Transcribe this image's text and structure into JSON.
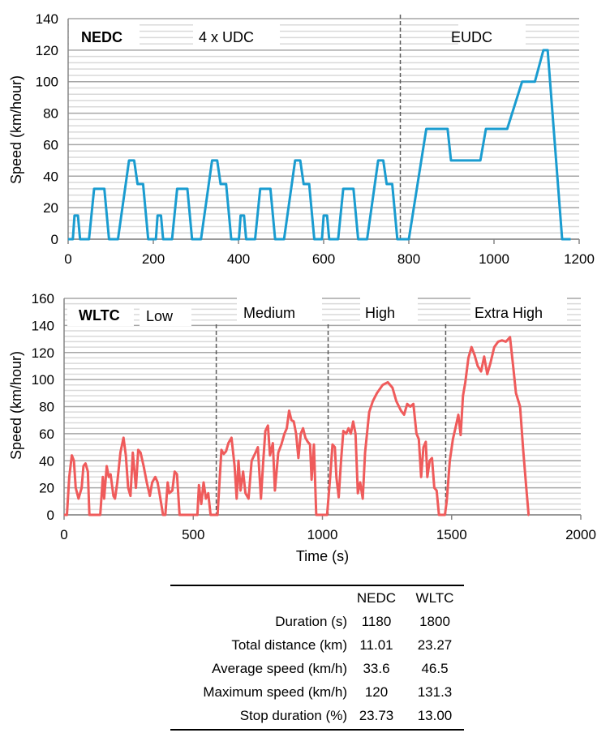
{
  "chart_data": [
    {
      "type": "line",
      "title": "",
      "xlabel": "",
      "ylabel": "Speed (km/hour)",
      "xlim": [
        0,
        1200
      ],
      "ylim": [
        0,
        140
      ],
      "xticks": [
        0,
        200,
        400,
        600,
        800,
        1000,
        1200
      ],
      "yticks": [
        0,
        20,
        40,
        60,
        80,
        100,
        120,
        140
      ],
      "grid": true,
      "color": "#1a9cd0",
      "annotations": {
        "cycle": "NEDC",
        "phases": [
          "4 x UDC",
          "EUDC"
        ]
      },
      "phase_boundaries": [
        780
      ],
      "points": [
        [
          0,
          0
        ],
        [
          11,
          0
        ],
        [
          15,
          15
        ],
        [
          23,
          15
        ],
        [
          28,
          0
        ],
        [
          49,
          0
        ],
        [
          61,
          32
        ],
        [
          85,
          32
        ],
        [
          96,
          0
        ],
        [
          117,
          0
        ],
        [
          143,
          50
        ],
        [
          155,
          50
        ],
        [
          163,
          35
        ],
        [
          176,
          35
        ],
        [
          188,
          0
        ],
        [
          206,
          0
        ],
        [
          210,
          15
        ],
        [
          218,
          15
        ],
        [
          223,
          0
        ],
        [
          244,
          0
        ],
        [
          256,
          32
        ],
        [
          280,
          32
        ],
        [
          291,
          0
        ],
        [
          312,
          0
        ],
        [
          338,
          50
        ],
        [
          350,
          50
        ],
        [
          358,
          35
        ],
        [
          371,
          35
        ],
        [
          383,
          0
        ],
        [
          401,
          0
        ],
        [
          405,
          15
        ],
        [
          413,
          15
        ],
        [
          418,
          0
        ],
        [
          439,
          0
        ],
        [
          451,
          32
        ],
        [
          475,
          32
        ],
        [
          486,
          0
        ],
        [
          507,
          0
        ],
        [
          533,
          50
        ],
        [
          545,
          50
        ],
        [
          553,
          35
        ],
        [
          566,
          35
        ],
        [
          578,
          0
        ],
        [
          596,
          0
        ],
        [
          600,
          15
        ],
        [
          608,
          15
        ],
        [
          613,
          0
        ],
        [
          634,
          0
        ],
        [
          646,
          32
        ],
        [
          670,
          32
        ],
        [
          681,
          0
        ],
        [
          702,
          0
        ],
        [
          728,
          50
        ],
        [
          740,
          50
        ],
        [
          748,
          35
        ],
        [
          761,
          35
        ],
        [
          773,
          0
        ],
        [
          800,
          0
        ],
        [
          841,
          70
        ],
        [
          891,
          70
        ],
        [
          899,
          50
        ],
        [
          968,
          50
        ],
        [
          981,
          70
        ],
        [
          1031,
          70
        ],
        [
          1066,
          100
        ],
        [
          1096,
          100
        ],
        [
          1116,
          120
        ],
        [
          1126,
          120
        ],
        [
          1160,
          0
        ],
        [
          1180,
          0
        ]
      ]
    },
    {
      "type": "line",
      "title": "",
      "xlabel": "Time (s)",
      "ylabel": "Speed (km/hour)",
      "xlim": [
        0,
        2000
      ],
      "ylim": [
        0,
        160
      ],
      "xticks": [
        0,
        500,
        1000,
        1500,
        2000
      ],
      "yticks": [
        0,
        20,
        40,
        60,
        80,
        100,
        120,
        140,
        160
      ],
      "grid": true,
      "color": "#ef5b5b",
      "annotations": {
        "cycle": "WLTC",
        "phases": [
          "Low",
          "Medium",
          "High",
          "Extra High"
        ]
      },
      "phase_boundaries": [
        589,
        1022,
        1477
      ],
      "points": [
        [
          0,
          0
        ],
        [
          11,
          0
        ],
        [
          20,
          28
        ],
        [
          30,
          44
        ],
        [
          38,
          40
        ],
        [
          45,
          20
        ],
        [
          56,
          12
        ],
        [
          68,
          20
        ],
        [
          75,
          36
        ],
        [
          83,
          38
        ],
        [
          92,
          32
        ],
        [
          98,
          0
        ],
        [
          140,
          0
        ],
        [
          150,
          28
        ],
        [
          155,
          12
        ],
        [
          165,
          36
        ],
        [
          173,
          28
        ],
        [
          180,
          30
        ],
        [
          191,
          14
        ],
        [
          197,
          12
        ],
        [
          206,
          24
        ],
        [
          218,
          46
        ],
        [
          230,
          57
        ],
        [
          239,
          44
        ],
        [
          248,
          20
        ],
        [
          257,
          14
        ],
        [
          266,
          46
        ],
        [
          278,
          20
        ],
        [
          287,
          48
        ],
        [
          296,
          46
        ],
        [
          308,
          36
        ],
        [
          320,
          24
        ],
        [
          332,
          14
        ],
        [
          341,
          24
        ],
        [
          353,
          28
        ],
        [
          362,
          24
        ],
        [
          371,
          14
        ],
        [
          383,
          0
        ],
        [
          392,
          0
        ],
        [
          401,
          24
        ],
        [
          407,
          16
        ],
        [
          419,
          18
        ],
        [
          428,
          32
        ],
        [
          437,
          30
        ],
        [
          447,
          0
        ],
        [
          516,
          0
        ],
        [
          522,
          22
        ],
        [
          531,
          8
        ],
        [
          540,
          24
        ],
        [
          549,
          12
        ],
        [
          558,
          16
        ],
        [
          567,
          0
        ],
        [
          594,
          0
        ],
        [
          609,
          48
        ],
        [
          618,
          45
        ],
        [
          627,
          47
        ],
        [
          636,
          53
        ],
        [
          648,
          57
        ],
        [
          660,
          36
        ],
        [
          668,
          12
        ],
        [
          675,
          40
        ],
        [
          683,
          18
        ],
        [
          693,
          32
        ],
        [
          702,
          16
        ],
        [
          714,
          12
        ],
        [
          726,
          40
        ],
        [
          741,
          46
        ],
        [
          750,
          50
        ],
        [
          762,
          12
        ],
        [
          771,
          40
        ],
        [
          779,
          62
        ],
        [
          789,
          66
        ],
        [
          797,
          44
        ],
        [
          808,
          53
        ],
        [
          816,
          18
        ],
        [
          829,
          46
        ],
        [
          841,
          52
        ],
        [
          853,
          60
        ],
        [
          862,
          64
        ],
        [
          871,
          77
        ],
        [
          880,
          70
        ],
        [
          889,
          69
        ],
        [
          898,
          60
        ],
        [
          907,
          42
        ],
        [
          916,
          60
        ],
        [
          925,
          64
        ],
        [
          934,
          57
        ],
        [
          943,
          54
        ],
        [
          952,
          52
        ],
        [
          958,
          26
        ],
        [
          967,
          52
        ],
        [
          976,
          0
        ],
        [
          1018,
          0
        ],
        [
          1030,
          28
        ],
        [
          1039,
          52
        ],
        [
          1048,
          50
        ],
        [
          1054,
          28
        ],
        [
          1063,
          13
        ],
        [
          1072,
          40
        ],
        [
          1081,
          62
        ],
        [
          1092,
          60
        ],
        [
          1101,
          64
        ],
        [
          1110,
          60
        ],
        [
          1119,
          69
        ],
        [
          1128,
          60
        ],
        [
          1137,
          16
        ],
        [
          1146,
          24
        ],
        [
          1156,
          12
        ],
        [
          1165,
          46
        ],
        [
          1181,
          76
        ],
        [
          1195,
          84
        ],
        [
          1211,
          90
        ],
        [
          1233,
          96
        ],
        [
          1253,
          98
        ],
        [
          1271,
          94
        ],
        [
          1286,
          84
        ],
        [
          1304,
          77
        ],
        [
          1316,
          74
        ],
        [
          1328,
          82
        ],
        [
          1340,
          80
        ],
        [
          1352,
          82
        ],
        [
          1364,
          60
        ],
        [
          1373,
          56
        ],
        [
          1382,
          28
        ],
        [
          1391,
          50
        ],
        [
          1400,
          54
        ],
        [
          1406,
          28
        ],
        [
          1415,
          40
        ],
        [
          1424,
          42
        ],
        [
          1433,
          20
        ],
        [
          1442,
          18
        ],
        [
          1451,
          0
        ],
        [
          1474,
          0
        ],
        [
          1481,
          10
        ],
        [
          1493,
          40
        ],
        [
          1505,
          56
        ],
        [
          1517,
          66
        ],
        [
          1526,
          74
        ],
        [
          1535,
          59
        ],
        [
          1544,
          88
        ],
        [
          1553,
          98
        ],
        [
          1565,
          116
        ],
        [
          1577,
          124
        ],
        [
          1589,
          118
        ],
        [
          1601,
          110
        ],
        [
          1614,
          106
        ],
        [
          1626,
          117
        ],
        [
          1638,
          104
        ],
        [
          1650,
          112
        ],
        [
          1665,
          124
        ],
        [
          1680,
          128
        ],
        [
          1695,
          129
        ],
        [
          1710,
          128
        ],
        [
          1726,
          131.3
        ],
        [
          1737,
          112
        ],
        [
          1749,
          90
        ],
        [
          1765,
          80
        ],
        [
          1777,
          48
        ],
        [
          1789,
          20
        ],
        [
          1798,
          0
        ],
        [
          1800,
          0
        ]
      ]
    }
  ],
  "table": {
    "columns": [
      "NEDC",
      "WLTC"
    ],
    "rows": [
      {
        "label": "Duration (s)",
        "values": [
          "1180",
          "1800"
        ]
      },
      {
        "label": "Total distance (km)",
        "values": [
          "11.01",
          "23.27"
        ]
      },
      {
        "label": "Average speed (km/h)",
        "values": [
          "33.6",
          "46.5"
        ]
      },
      {
        "label": "Maximum speed (km/h)",
        "values": [
          "120",
          "131.3"
        ]
      },
      {
        "label": "Stop duration (%)",
        "values": [
          "23.73",
          "13.00"
        ]
      }
    ]
  }
}
